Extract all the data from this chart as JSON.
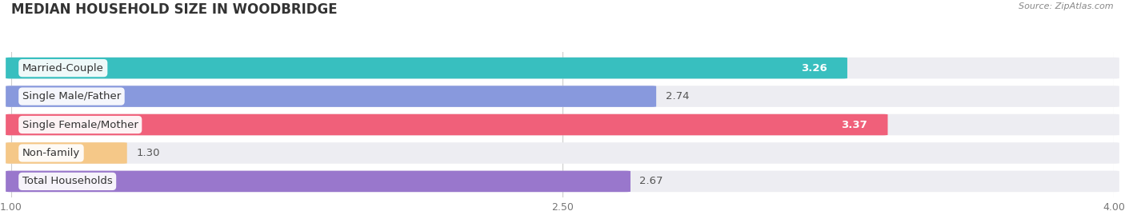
{
  "title": "MEDIAN HOUSEHOLD SIZE IN WOODBRIDGE",
  "source": "Source: ZipAtlas.com",
  "categories": [
    "Married-Couple",
    "Single Male/Father",
    "Single Female/Mother",
    "Non-family",
    "Total Households"
  ],
  "values": [
    3.26,
    2.74,
    3.37,
    1.3,
    2.67
  ],
  "bar_colors": [
    "#38bfbf",
    "#8899dd",
    "#f0607a",
    "#f5c888",
    "#9977cc"
  ],
  "bar_bg_color": "#ededf2",
  "value_inside": [
    true,
    false,
    true,
    false,
    false
  ],
  "xlim_min": 1.0,
  "xlim_max": 4.0,
  "xtick_labels": [
    "1.00",
    "2.50",
    "4.00"
  ],
  "xtick_values": [
    1.0,
    2.5,
    4.0
  ],
  "title_fontsize": 12,
  "label_fontsize": 9.5,
  "value_fontsize": 9.5,
  "background_color": "#ffffff",
  "bar_height": 0.72,
  "bar_gap": 0.28
}
